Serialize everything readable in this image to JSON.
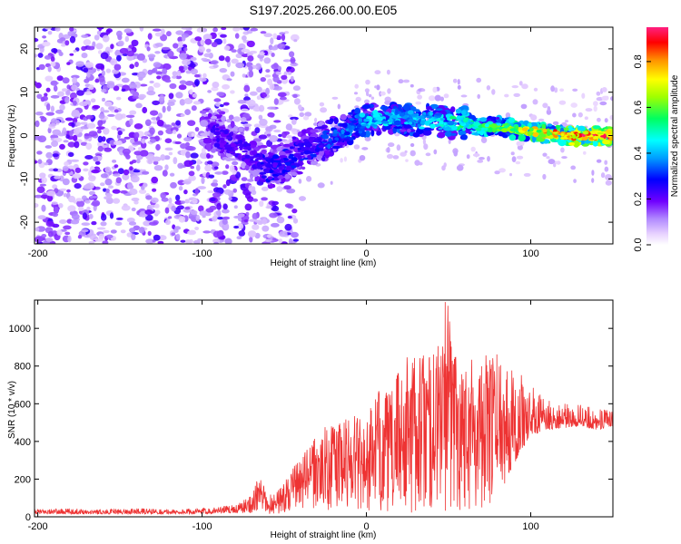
{
  "title": "S197.2025.266.00.00.E05",
  "chart_data": [
    {
      "type": "heatmap",
      "title": "S197.2025.266.00.00.E05",
      "xlabel": "Height of straight line (km)",
      "ylabel": "Frequency (Hz)",
      "xlim": [
        -202,
        150
      ],
      "ylim": [
        -25,
        25
      ],
      "xticks": [
        -200,
        -100,
        0,
        100
      ],
      "yticks": [
        -20,
        -10,
        0,
        10,
        20
      ],
      "xtick_labels": [
        "-200",
        "-100",
        "0",
        "100"
      ],
      "ytick_labels": [
        "-20",
        "-10",
        "0",
        "10",
        "20"
      ],
      "colorbar": {
        "label": "Normalized spectral amplitude",
        "range": [
          0,
          0.95
        ],
        "ticks": [
          0,
          0.2,
          0.4,
          0.6,
          0.8
        ],
        "tick_labels": [
          "0.0",
          "0.2",
          "0.4",
          "0.6",
          "0.8"
        ]
      },
      "ridge": {
        "x": [
          -200,
          -150,
          -100,
          -90,
          -80,
          -70,
          -60,
          -50,
          -40,
          -30,
          -20,
          -10,
          0,
          10,
          20,
          30,
          40,
          50,
          60,
          70,
          80,
          90,
          100,
          110,
          120,
          130,
          140,
          150
        ],
        "freq": [
          0,
          0,
          2,
          0,
          -2,
          -4,
          -8,
          -6,
          -4,
          -2,
          0,
          2,
          3.5,
          4,
          4,
          3.5,
          3.5,
          3,
          3,
          2,
          2,
          1.5,
          1,
          0.5,
          0,
          0,
          0,
          0
        ],
        "amplitude": [
          0.1,
          0.12,
          0.22,
          0.25,
          0.25,
          0.25,
          0.28,
          0.3,
          0.3,
          0.3,
          0.35,
          0.4,
          0.45,
          0.45,
          0.45,
          0.45,
          0.45,
          0.5,
          0.55,
          0.6,
          0.6,
          0.7,
          0.75,
          0.8,
          0.9,
          0.92,
          0.92,
          0.92
        ]
      }
    },
    {
      "type": "line",
      "xlabel": "Height of straight line (km)",
      "ylabel": "SNR (10 * v/v)",
      "xlim": [
        -202,
        150
      ],
      "ylim": [
        0,
        1150
      ],
      "xticks": [
        -200,
        -100,
        0,
        100
      ],
      "yticks": [
        0,
        200,
        400,
        600,
        800,
        1000
      ],
      "xtick_labels": [
        "-200",
        "-100",
        "0",
        "100"
      ],
      "ytick_labels": [
        "0",
        "200",
        "400",
        "600",
        "800",
        "1000"
      ],
      "color": "#ee3333",
      "series": [
        {
          "name": "SNR",
          "envelope_x": [
            -202,
            -180,
            -160,
            -140,
            -120,
            -100,
            -90,
            -80,
            -75,
            -70,
            -65,
            -60,
            -50,
            -45,
            -40,
            -35,
            -30,
            -25,
            -20,
            -15,
            -10,
            -5,
            0,
            5,
            10,
            15,
            20,
            25,
            30,
            35,
            40,
            45,
            50,
            55,
            60,
            65,
            70,
            75,
            80,
            85,
            90,
            95,
            100,
            110,
            120,
            130,
            140,
            150
          ],
          "envelope_high": [
            40,
            45,
            40,
            45,
            40,
            45,
            55,
            65,
            90,
            130,
            220,
            110,
            180,
            260,
            320,
            380,
            430,
            480,
            520,
            500,
            560,
            600,
            500,
            650,
            700,
            650,
            820,
            860,
            900,
            870,
            880,
            960,
            1140,
            950,
            870,
            900,
            860,
            860,
            900,
            800,
            820,
            750,
            700,
            620,
            600,
            600,
            580,
            560
          ],
          "envelope_low": [
            15,
            15,
            15,
            15,
            15,
            15,
            20,
            20,
            20,
            20,
            15,
            10,
            20,
            30,
            40,
            40,
            40,
            30,
            30,
            30,
            30,
            25,
            30,
            25,
            20,
            20,
            20,
            20,
            15,
            20,
            25,
            20,
            15,
            20,
            25,
            30,
            40,
            60,
            90,
            180,
            280,
            360,
            430,
            460,
            470,
            480,
            460,
            480
          ],
          "peak": {
            "x": 48,
            "y": 1140
          }
        }
      ]
    }
  ]
}
